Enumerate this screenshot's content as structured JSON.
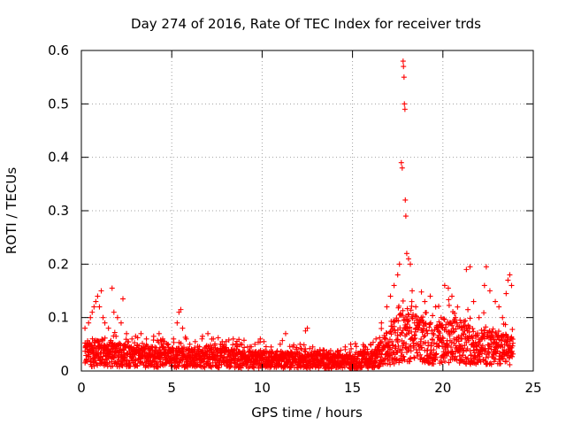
{
  "chart_data": {
    "type": "scatter",
    "title": "Day 274 of 2016, Rate Of TEC Index for receiver trds",
    "xlabel": "GPS time / hours",
    "ylabel": "ROTI / TECUs",
    "xlim": [
      0,
      25
    ],
    "ylim": [
      0,
      0.6
    ],
    "x_ticks": [
      0,
      5,
      10,
      15,
      20,
      25
    ],
    "x_tick_labels": [
      "0",
      "5",
      "10",
      "15",
      "20",
      "25"
    ],
    "y_ticks": [
      0,
      0.1,
      0.2,
      0.3,
      0.4,
      0.5,
      0.6
    ],
    "y_tick_labels": [
      "0",
      "0.1",
      "0.2",
      "0.3",
      "0.4",
      "0.5",
      "0.6"
    ],
    "grid": true,
    "marker": "plus",
    "series_color": "#ff0000",
    "series": [
      {
        "name": "ROTI",
        "points": [
          [
            0.2,
            0.08
          ],
          [
            0.3,
            0.05
          ],
          [
            0.4,
            0.09
          ],
          [
            0.5,
            0.1
          ],
          [
            0.6,
            0.11
          ],
          [
            0.7,
            0.12
          ],
          [
            0.8,
            0.13
          ],
          [
            0.9,
            0.14
          ],
          [
            1.0,
            0.12
          ],
          [
            1.1,
            0.15
          ],
          [
            1.2,
            0.1
          ],
          [
            1.3,
            0.09
          ],
          [
            1.5,
            0.08
          ],
          [
            1.7,
            0.155
          ],
          [
            1.8,
            0.11
          ],
          [
            2.0,
            0.1
          ],
          [
            2.2,
            0.09
          ],
          [
            2.3,
            0.135
          ],
          [
            2.5,
            0.07
          ],
          [
            2.8,
            0.06
          ],
          [
            3.0,
            0.065
          ],
          [
            3.3,
            0.07
          ],
          [
            3.6,
            0.06
          ],
          [
            4.0,
            0.065
          ],
          [
            4.3,
            0.07
          ],
          [
            4.5,
            0.06
          ],
          [
            4.8,
            0.05
          ],
          [
            5.1,
            0.06
          ],
          [
            5.3,
            0.09
          ],
          [
            5.4,
            0.11
          ],
          [
            5.5,
            0.115
          ],
          [
            5.6,
            0.08
          ],
          [
            5.8,
            0.06
          ],
          [
            6.0,
            0.05
          ],
          [
            6.3,
            0.055
          ],
          [
            6.7,
            0.065
          ],
          [
            7.0,
            0.07
          ],
          [
            7.3,
            0.06
          ],
          [
            7.7,
            0.05
          ],
          [
            8.0,
            0.055
          ],
          [
            8.4,
            0.06
          ],
          [
            8.8,
            0.05
          ],
          [
            9.2,
            0.045
          ],
          [
            9.6,
            0.05
          ],
          [
            9.9,
            0.06
          ],
          [
            10.1,
            0.055
          ],
          [
            10.5,
            0.045
          ],
          [
            11.0,
            0.05
          ],
          [
            11.3,
            0.07
          ],
          [
            11.7,
            0.045
          ],
          [
            12.1,
            0.05
          ],
          [
            12.4,
            0.075
          ],
          [
            12.5,
            0.08
          ],
          [
            12.8,
            0.045
          ],
          [
            13.2,
            0.04
          ],
          [
            13.7,
            0.035
          ],
          [
            14.2,
            0.035
          ],
          [
            14.6,
            0.04
          ],
          [
            14.9,
            0.05
          ],
          [
            15.2,
            0.035
          ],
          [
            15.6,
            0.04
          ],
          [
            16.0,
            0.05
          ],
          [
            16.3,
            0.06
          ],
          [
            16.6,
            0.09
          ],
          [
            16.9,
            0.12
          ],
          [
            17.1,
            0.14
          ],
          [
            17.3,
            0.16
          ],
          [
            17.5,
            0.18
          ],
          [
            17.6,
            0.2
          ],
          [
            17.7,
            0.39
          ],
          [
            17.75,
            0.38
          ],
          [
            17.8,
            0.58
          ],
          [
            17.82,
            0.57
          ],
          [
            17.85,
            0.55
          ],
          [
            17.87,
            0.5
          ],
          [
            17.9,
            0.49
          ],
          [
            17.92,
            0.32
          ],
          [
            17.95,
            0.29
          ],
          [
            18.0,
            0.22
          ],
          [
            18.1,
            0.21
          ],
          [
            18.2,
            0.2
          ],
          [
            18.3,
            0.15
          ],
          [
            18.5,
            0.12
          ],
          [
            18.8,
            0.1
          ],
          [
            19.0,
            0.13
          ],
          [
            19.3,
            0.14
          ],
          [
            19.6,
            0.12
          ],
          [
            19.9,
            0.1
          ],
          [
            20.1,
            0.16
          ],
          [
            20.3,
            0.155
          ],
          [
            20.5,
            0.14
          ],
          [
            20.7,
            0.1
          ],
          [
            21.0,
            0.09
          ],
          [
            21.3,
            0.19
          ],
          [
            21.5,
            0.195
          ],
          [
            21.7,
            0.13
          ],
          [
            22.0,
            0.1
          ],
          [
            22.3,
            0.16
          ],
          [
            22.4,
            0.195
          ],
          [
            22.6,
            0.15
          ],
          [
            22.9,
            0.13
          ],
          [
            23.1,
            0.12
          ],
          [
            23.3,
            0.1
          ],
          [
            23.5,
            0.145
          ],
          [
            23.6,
            0.17
          ],
          [
            23.7,
            0.18
          ],
          [
            23.8,
            0.16
          ]
        ],
        "baseline": [
          [
            0.2,
            0.03
          ],
          [
            1.0,
            0.035
          ],
          [
            2.0,
            0.03
          ],
          [
            3.0,
            0.028
          ],
          [
            4.0,
            0.027
          ],
          [
            5.0,
            0.025
          ],
          [
            6.0,
            0.025
          ],
          [
            7.0,
            0.026
          ],
          [
            8.0,
            0.024
          ],
          [
            9.0,
            0.022
          ],
          [
            10.0,
            0.022
          ],
          [
            11.0,
            0.021
          ],
          [
            12.0,
            0.02
          ],
          [
            13.0,
            0.019
          ],
          [
            14.0,
            0.018
          ],
          [
            15.0,
            0.018
          ],
          [
            16.0,
            0.022
          ],
          [
            16.5,
            0.03
          ],
          [
            17.0,
            0.045
          ],
          [
            17.5,
            0.06
          ],
          [
            18.0,
            0.07
          ],
          [
            18.5,
            0.06
          ],
          [
            19.0,
            0.055
          ],
          [
            19.5,
            0.05
          ],
          [
            20.0,
            0.05
          ],
          [
            20.5,
            0.055
          ],
          [
            21.0,
            0.05
          ],
          [
            21.5,
            0.05
          ],
          [
            22.0,
            0.045
          ],
          [
            22.5,
            0.045
          ],
          [
            23.0,
            0.04
          ],
          [
            23.5,
            0.04
          ],
          [
            23.9,
            0.035
          ]
        ]
      }
    ]
  }
}
